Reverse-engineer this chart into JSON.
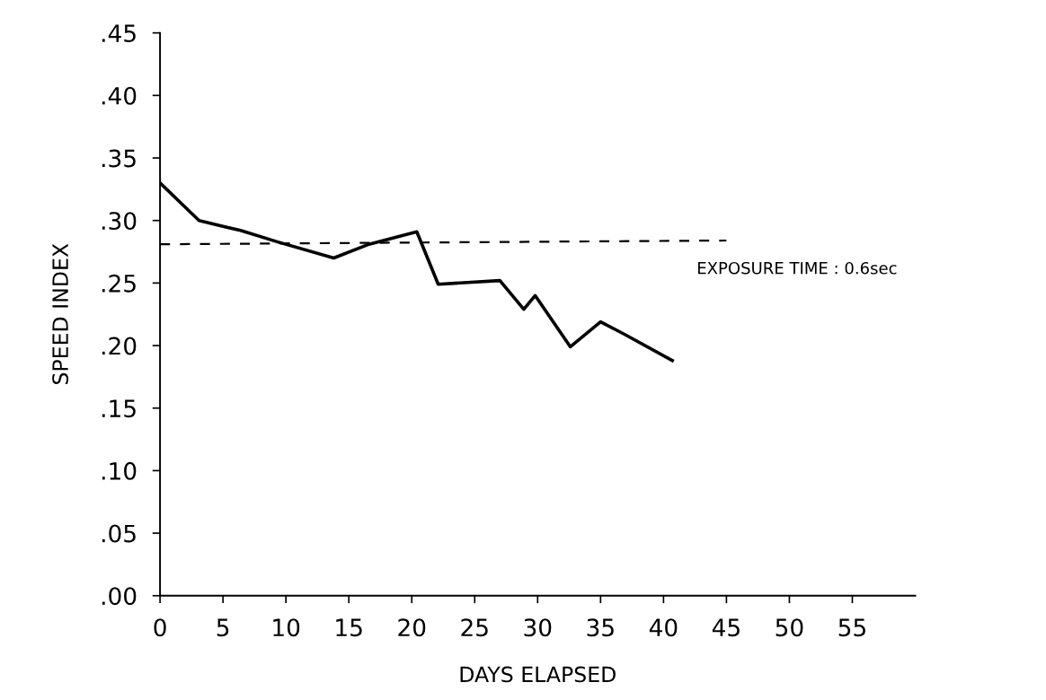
{
  "chart_data": {
    "type": "line",
    "xlabel": "DAYS ELAPSED",
    "ylabel": "SPEED INDEX",
    "xlim": [
      0,
      60
    ],
    "xticks": [
      0,
      5,
      10,
      15,
      20,
      25,
      30,
      35,
      40,
      45,
      50,
      55
    ],
    "ylim": [
      0,
      0.45
    ],
    "yticks": [
      {
        "value": 0,
        "label": ".00"
      },
      {
        "value": 0.05,
        "label": ".05"
      },
      {
        "value": 0.1,
        "label": ".10"
      },
      {
        "value": 0.15,
        "label": ".15"
      },
      {
        "value": 0.2,
        "label": ".20"
      },
      {
        "value": 0.25,
        "label": ".25"
      },
      {
        "value": 0.3,
        "label": ".30"
      },
      {
        "value": 0.35,
        "label": ".35"
      },
      {
        "value": 0.4,
        "label": ".40"
      },
      {
        "value": 0.45,
        "label": ".45"
      }
    ],
    "grid": false,
    "legend": false,
    "marker": "none",
    "series": [
      {
        "color": "#000000",
        "line_style": "solid",
        "x": [
          0,
          3.1,
          6.4,
          9.3,
          13.8,
          16.6,
          20.4,
          22.1,
          27,
          28.9,
          29.8,
          32.6,
          35,
          36.9,
          40.7
        ],
        "values": [
          0.33,
          0.3,
          0.292,
          0.283,
          0.27,
          0.281,
          0.291,
          0.249,
          0.252,
          0.229,
          0.24,
          0.199,
          0.219,
          0.209,
          0.188
        ]
      },
      {
        "color": "#000000",
        "line_style": "dashed",
        "x": [
          0,
          45
        ],
        "values": [
          0.281,
          0.284
        ]
      }
    ],
    "annotations": [
      "EXPOSURE TIME : 0.6sec"
    ]
  }
}
